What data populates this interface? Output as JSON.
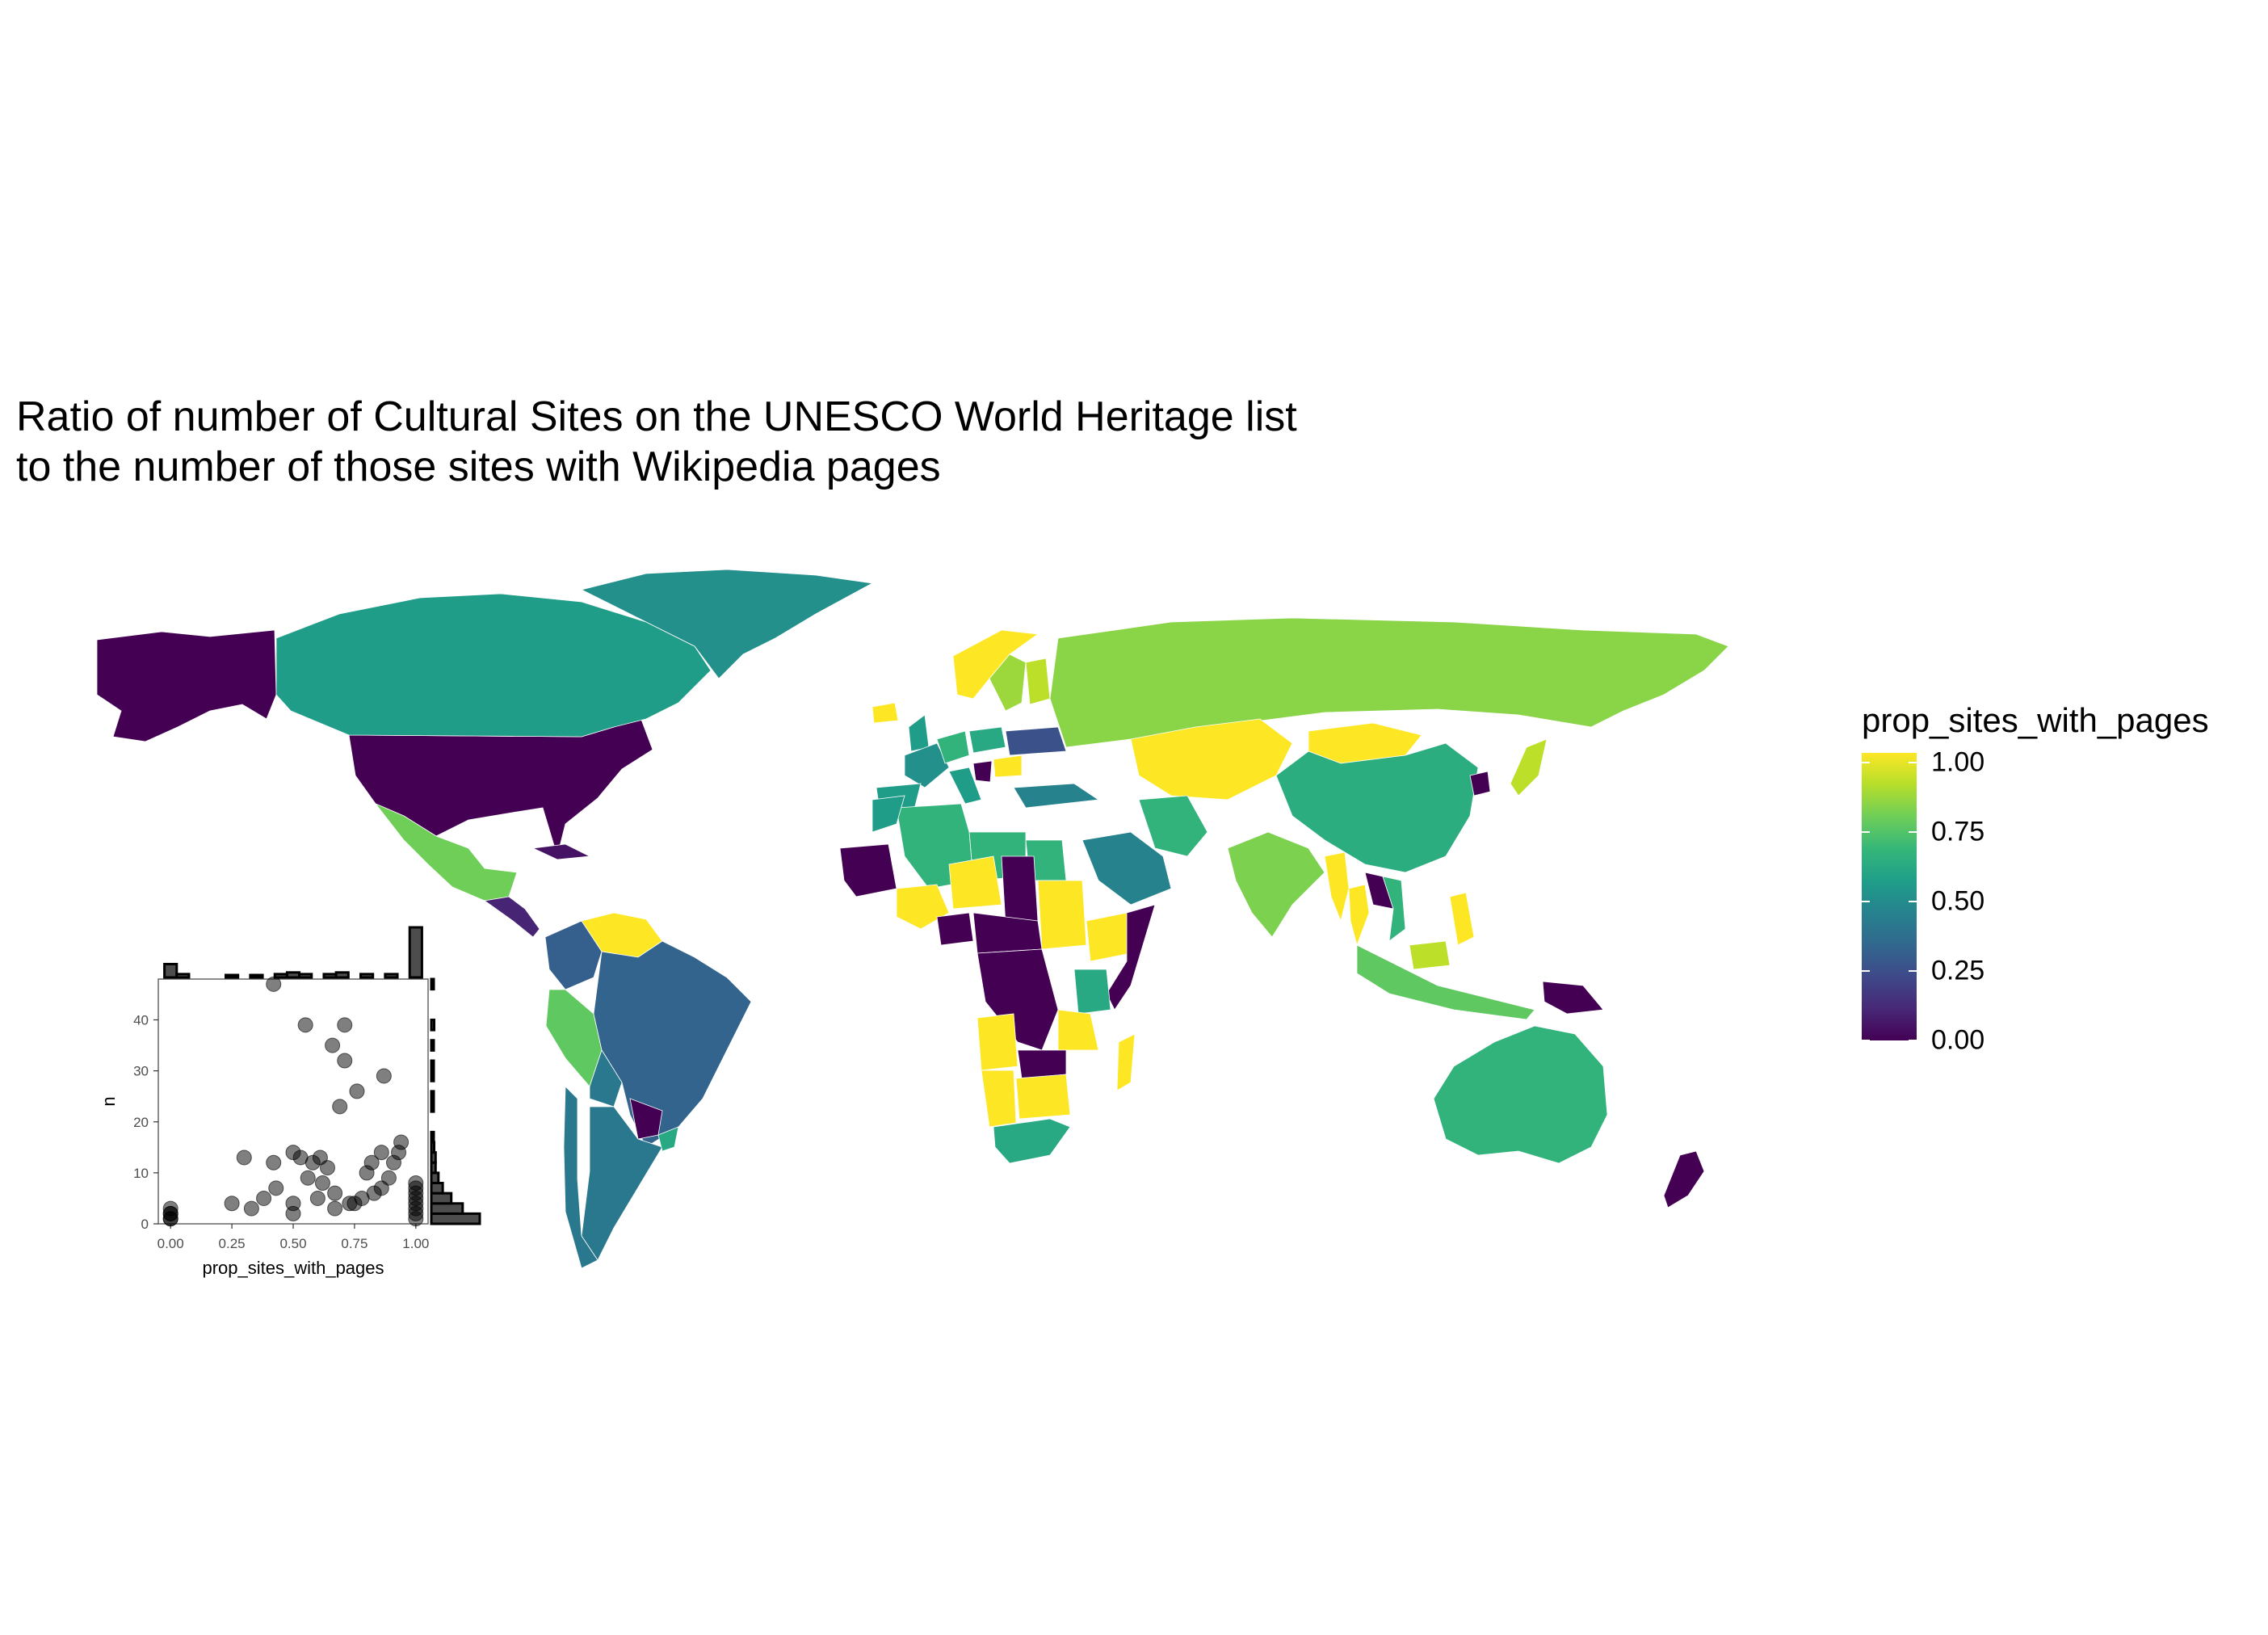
{
  "title": {
    "line1": "Ratio of number of Cultural Sites on the UNESCO World Heritage list",
    "line2": "to the number of those sites with Wikipedia pages"
  },
  "colors": {
    "viridis": [
      "#440154",
      "#482878",
      "#3e4989",
      "#31688e",
      "#26828e",
      "#1f9e89",
      "#35b779",
      "#6ece58",
      "#b5de2b",
      "#fde725"
    ],
    "background": "#ffffff"
  },
  "legend": {
    "title": "prop_sites_with_pages",
    "labels": [
      "1.00",
      "0.75",
      "0.50",
      "0.25",
      "0.00"
    ],
    "values": [
      1.0,
      0.75,
      0.5,
      0.25,
      0.0
    ]
  },
  "chart_data": [
    {
      "type": "choropleth",
      "fill": "prop_sites_with_pages",
      "legend_position": "right",
      "regions": [
        {
          "region": "Alaska (USA)",
          "value": 0.0
        },
        {
          "region": "USA",
          "value": 0.0
        },
        {
          "region": "Canada",
          "value": 0.55
        },
        {
          "region": "Greenland",
          "value": 0.5
        },
        {
          "region": "Mexico",
          "value": 0.78
        },
        {
          "region": "Central America",
          "value": 0.1
        },
        {
          "region": "Cuba",
          "value": 0.05
        },
        {
          "region": "Venezuela",
          "value": 1.0
        },
        {
          "region": "Colombia",
          "value": 0.3
        },
        {
          "region": "Peru",
          "value": 0.75
        },
        {
          "region": "Brazil",
          "value": 0.32
        },
        {
          "region": "Bolivia",
          "value": 0.4
        },
        {
          "region": "Paraguay",
          "value": 0.0
        },
        {
          "region": "Argentina",
          "value": 0.4
        },
        {
          "region": "Chile",
          "value": 0.4
        },
        {
          "region": "Uruguay",
          "value": 0.6
        },
        {
          "region": "Iceland",
          "value": 1.0
        },
        {
          "region": "Norway",
          "value": 1.0
        },
        {
          "region": "Sweden",
          "value": 0.85
        },
        {
          "region": "Finland",
          "value": 0.9
        },
        {
          "region": "United Kingdom",
          "value": 0.55
        },
        {
          "region": "France",
          "value": 0.5
        },
        {
          "region": "Spain",
          "value": 0.55
        },
        {
          "region": "Germany",
          "value": 0.65
        },
        {
          "region": "Italy",
          "value": 0.55
        },
        {
          "region": "Poland",
          "value": 0.6
        },
        {
          "region": "Ukraine",
          "value": 0.25
        },
        {
          "region": "Romania",
          "value": 1.0
        },
        {
          "region": "Serbia",
          "value": 0.0
        },
        {
          "region": "Turkey",
          "value": 0.45
        },
        {
          "region": "Russia",
          "value": 0.82
        },
        {
          "region": "Kazakhstan",
          "value": 1.0
        },
        {
          "region": "Mongolia",
          "value": 1.0
        },
        {
          "region": "China",
          "value": 0.62
        },
        {
          "region": "North Korea",
          "value": 0.0
        },
        {
          "region": "Japan",
          "value": 0.9
        },
        {
          "region": "India",
          "value": 0.8
        },
        {
          "region": "Myanmar",
          "value": 1.0
        },
        {
          "region": "Thailand",
          "value": 1.0
        },
        {
          "region": "Laos",
          "value": 0.0
        },
        {
          "region": "Vietnam",
          "value": 0.65
        },
        {
          "region": "Philippines",
          "value": 1.0
        },
        {
          "region": "Indonesia",
          "value": 0.75
        },
        {
          "region": "Malaysia",
          "value": 0.9
        },
        {
          "region": "Papua New Guinea",
          "value": 0.0
        },
        {
          "region": "Australia",
          "value": 0.65
        },
        {
          "region": "New Zealand",
          "value": 0.0
        },
        {
          "region": "Saudi Arabia",
          "value": 0.45
        },
        {
          "region": "Iran",
          "value": 0.65
        },
        {
          "region": "Egypt",
          "value": 0.65
        },
        {
          "region": "Libya",
          "value": 0.65
        },
        {
          "region": "Algeria",
          "value": 0.65
        },
        {
          "region": "Morocco",
          "value": 0.55
        },
        {
          "region": "Mali",
          "value": 1.0
        },
        {
          "region": "Mauritania",
          "value": 0.0
        },
        {
          "region": "Niger",
          "value": 1.0
        },
        {
          "region": "Chad",
          "value": 0.0
        },
        {
          "region": "Sudan",
          "value": 1.0
        },
        {
          "region": "Ethiopia",
          "value": 1.0
        },
        {
          "region": "Somalia",
          "value": 0.0
        },
        {
          "region": "Nigeria",
          "value": 0.0
        },
        {
          "region": "Central African Republic",
          "value": 0.0
        },
        {
          "region": "DR Congo",
          "value": 0.0
        },
        {
          "region": "Kenya",
          "value": 0.6
        },
        {
          "region": "Tanzania",
          "value": 1.0
        },
        {
          "region": "Angola",
          "value": 1.0
        },
        {
          "region": "Zambia",
          "value": 0.0
        },
        {
          "region": "Namibia",
          "value": 1.0
        },
        {
          "region": "Botswana",
          "value": 1.0
        },
        {
          "region": "South Africa",
          "value": 0.6
        },
        {
          "region": "Madagascar",
          "value": 1.0
        }
      ]
    },
    {
      "type": "scatter",
      "x_label": "prop_sites_with_pages",
      "y_label": "n",
      "x_ticks": [
        "0.00",
        "0.25",
        "0.50",
        "0.75",
        "1.00"
      ],
      "y_ticks": [
        "0",
        "10",
        "20",
        "30",
        "40"
      ],
      "x_range": [
        -0.05,
        1.05
      ],
      "y_range": [
        0,
        48
      ],
      "points": [
        {
          "x": 0.0,
          "y": 3
        },
        {
          "x": 0.0,
          "y": 2
        },
        {
          "x": 0.0,
          "y": 1
        },
        {
          "x": 0.0,
          "y": 1
        },
        {
          "x": 0.0,
          "y": 2
        },
        {
          "x": 0.25,
          "y": 4
        },
        {
          "x": 0.3,
          "y": 13
        },
        {
          "x": 0.33,
          "y": 3
        },
        {
          "x": 0.38,
          "y": 5
        },
        {
          "x": 0.42,
          "y": 12
        },
        {
          "x": 0.42,
          "y": 47
        },
        {
          "x": 0.43,
          "y": 7
        },
        {
          "x": 0.5,
          "y": 2
        },
        {
          "x": 0.5,
          "y": 4
        },
        {
          "x": 0.5,
          "y": 14
        },
        {
          "x": 0.53,
          "y": 13
        },
        {
          "x": 0.55,
          "y": 39
        },
        {
          "x": 0.56,
          "y": 9
        },
        {
          "x": 0.58,
          "y": 12
        },
        {
          "x": 0.6,
          "y": 5
        },
        {
          "x": 0.61,
          "y": 13
        },
        {
          "x": 0.62,
          "y": 8
        },
        {
          "x": 0.64,
          "y": 11
        },
        {
          "x": 0.66,
          "y": 35
        },
        {
          "x": 0.67,
          "y": 3
        },
        {
          "x": 0.67,
          "y": 6
        },
        {
          "x": 0.69,
          "y": 23
        },
        {
          "x": 0.71,
          "y": 32
        },
        {
          "x": 0.71,
          "y": 39
        },
        {
          "x": 0.73,
          "y": 4
        },
        {
          "x": 0.75,
          "y": 4
        },
        {
          "x": 0.76,
          "y": 26
        },
        {
          "x": 0.78,
          "y": 5
        },
        {
          "x": 0.8,
          "y": 10
        },
        {
          "x": 0.82,
          "y": 12
        },
        {
          "x": 0.83,
          "y": 6
        },
        {
          "x": 0.86,
          "y": 7
        },
        {
          "x": 0.86,
          "y": 14
        },
        {
          "x": 0.87,
          "y": 29
        },
        {
          "x": 0.89,
          "y": 9
        },
        {
          "x": 0.91,
          "y": 12
        },
        {
          "x": 0.93,
          "y": 14
        },
        {
          "x": 0.94,
          "y": 16
        },
        {
          "x": 1.0,
          "y": 1
        },
        {
          "x": 1.0,
          "y": 2
        },
        {
          "x": 1.0,
          "y": 3
        },
        {
          "x": 1.0,
          "y": 4
        },
        {
          "x": 1.0,
          "y": 5
        },
        {
          "x": 1.0,
          "y": 6
        },
        {
          "x": 1.0,
          "y": 7
        },
        {
          "x": 1.0,
          "y": 8
        }
      ]
    },
    {
      "type": "histogram",
      "variable": "prop_sites_with_pages",
      "bins": [
        {
          "x": 0.0,
          "count": 8
        },
        {
          "x": 0.05,
          "count": 2
        },
        {
          "x": 0.25,
          "count": 1
        },
        {
          "x": 0.35,
          "count": 1
        },
        {
          "x": 0.45,
          "count": 2
        },
        {
          "x": 0.5,
          "count": 3
        },
        {
          "x": 0.55,
          "count": 2
        },
        {
          "x": 0.65,
          "count": 2
        },
        {
          "x": 0.7,
          "count": 3
        },
        {
          "x": 0.8,
          "count": 2
        },
        {
          "x": 0.9,
          "count": 2
        },
        {
          "x": 1.0,
          "count": 30
        }
      ]
    },
    {
      "type": "histogram",
      "variable": "n",
      "orientation": "horizontal",
      "bins": [
        {
          "y": 1,
          "count": 34
        },
        {
          "y": 3,
          "count": 22
        },
        {
          "y": 5,
          "count": 14
        },
        {
          "y": 7,
          "count": 8
        },
        {
          "y": 9,
          "count": 5
        },
        {
          "y": 11,
          "count": 3
        },
        {
          "y": 13,
          "count": 3
        },
        {
          "y": 15,
          "count": 2
        },
        {
          "y": 17,
          "count": 1
        },
        {
          "y": 23,
          "count": 1
        },
        {
          "y": 25,
          "count": 1
        },
        {
          "y": 29,
          "count": 1
        },
        {
          "y": 31,
          "count": 1
        },
        {
          "y": 35,
          "count": 1
        },
        {
          "y": 39,
          "count": 2
        },
        {
          "y": 47,
          "count": 1
        }
      ]
    }
  ]
}
